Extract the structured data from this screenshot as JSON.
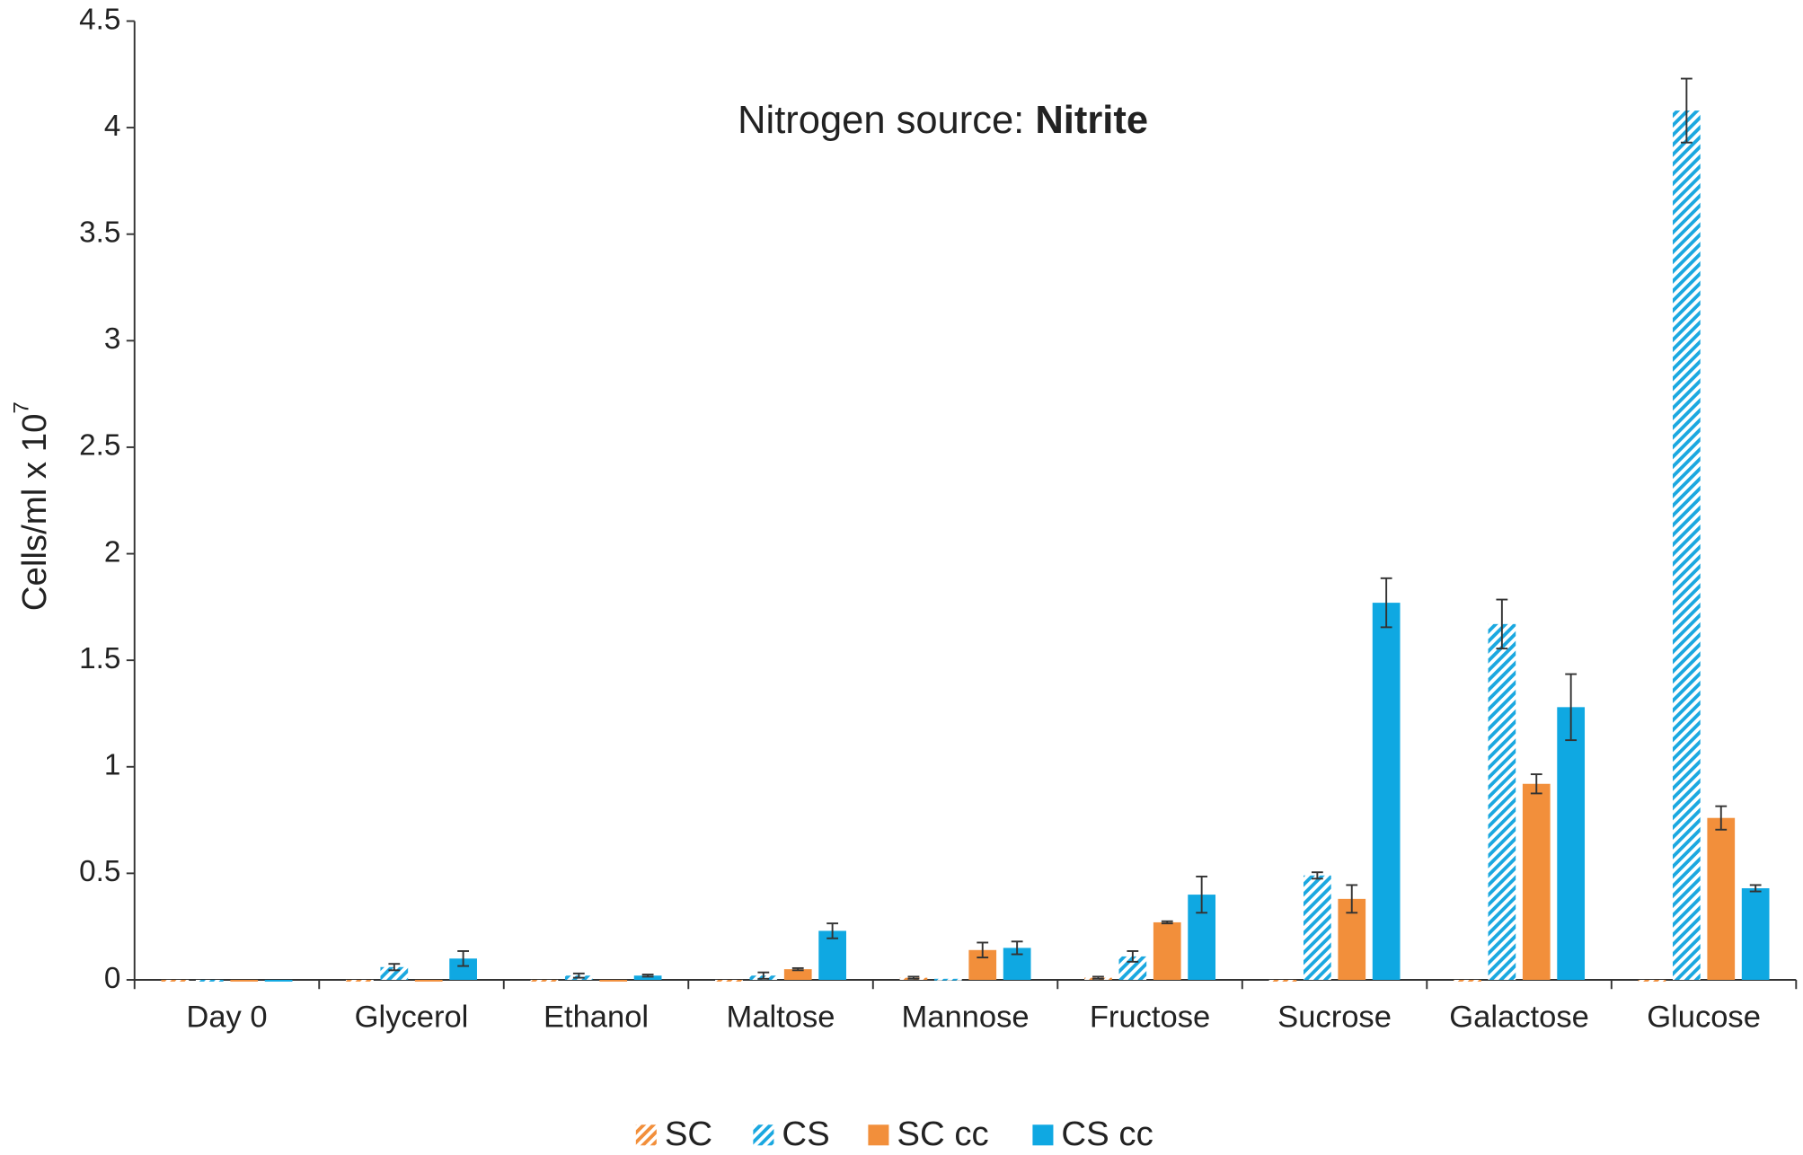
{
  "chart_data": {
    "type": "bar",
    "title": "Nitrogen source:",
    "title_emphasis": "Nitrite",
    "ylabel": "Cells/ml x 10",
    "ylabel_superscript": "7",
    "categories": [
      "Day 0",
      "Glycerol",
      "Ethanol",
      "Maltose",
      "Mannose",
      "Fructose",
      "Sucrose",
      "Galactose",
      "Glucose"
    ],
    "series": [
      {
        "name": "SC",
        "color": "#f28f3b",
        "pattern": "hatch",
        "values": [
          0,
          0,
          0,
          0,
          0.01,
          0.01,
          0,
          0,
          0
        ],
        "errors": [
          null,
          null,
          null,
          null,
          0.005,
          0.005,
          null,
          null,
          null
        ]
      },
      {
        "name": "CS",
        "color": "#1ba8e0",
        "pattern": "hatch",
        "values": [
          0,
          0.06,
          0.02,
          0.02,
          0.005,
          0.11,
          0.49,
          1.67,
          4.08
        ],
        "errors": [
          null,
          0.015,
          0.01,
          0.015,
          null,
          0.025,
          0.015,
          0.115,
          0.15
        ]
      },
      {
        "name": "SC cc",
        "color": "#f28f3b",
        "pattern": "solid",
        "values": [
          0,
          0,
          0,
          0.05,
          0.14,
          0.27,
          0.38,
          0.92,
          0.76
        ],
        "errors": [
          null,
          null,
          null,
          0.005,
          0.035,
          0.005,
          0.065,
          0.045,
          0.055
        ]
      },
      {
        "name": "CS cc",
        "color": "#0fa8e2",
        "pattern": "solid",
        "values": [
          0,
          0.1,
          0.02,
          0.23,
          0.15,
          0.4,
          1.77,
          1.28,
          0.43
        ],
        "errors": [
          null,
          0.035,
          0.005,
          0.035,
          0.03,
          0.085,
          0.115,
          0.155,
          0.015
        ]
      }
    ],
    "ylim": [
      0,
      4.5
    ],
    "yticks": [
      0,
      0.5,
      1,
      1.5,
      2,
      2.5,
      3,
      3.5,
      4,
      4.5
    ],
    "grid": false
  }
}
